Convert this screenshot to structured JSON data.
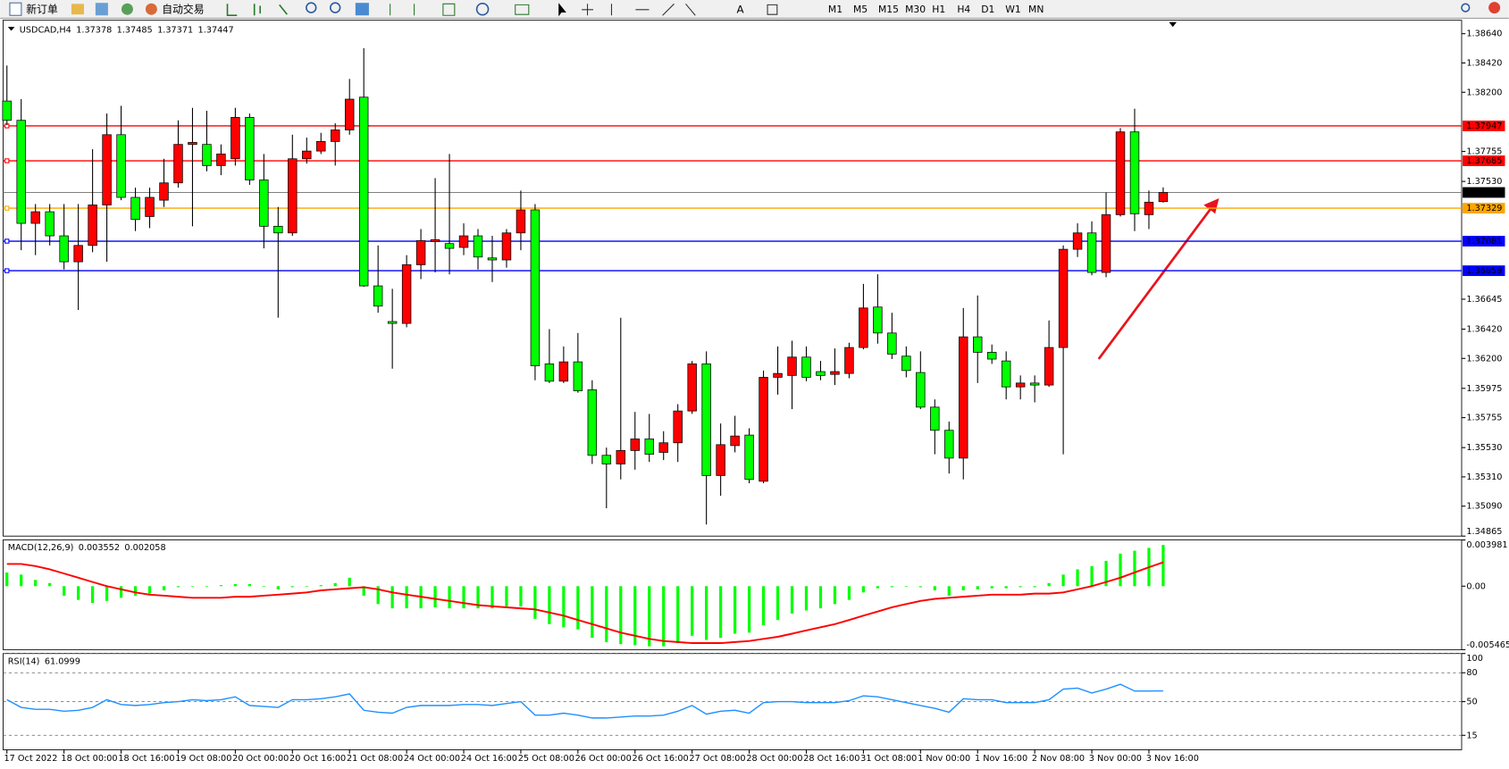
{
  "toolbar": {
    "new_order": "新订单",
    "auto_trading": "自动交易",
    "timeframes": [
      "M1",
      "M5",
      "M15",
      "M30",
      "H1",
      "H4",
      "D1",
      "W1",
      "MN"
    ]
  },
  "chart_data": [
    {
      "type": "candlestick",
      "title": "USDCAD,H4",
      "up_color": "#ff0000",
      "down_color": "#00ff00",
      "last_color": "#808080",
      "categories": [
        "17 Oct 2022",
        null,
        null,
        null,
        "18 Oct 00:00",
        null,
        null,
        null,
        "18 Oct 16:00",
        null,
        null,
        null,
        "19 Oct 08:00",
        null,
        null,
        null,
        "20 Oct 00:00",
        null,
        null,
        null,
        "20 Oct 16:00",
        null,
        null,
        null,
        "21 Oct 08:00",
        null,
        null,
        null,
        "24 Oct 00:00",
        null,
        null,
        null,
        "24 Oct 16:00",
        null,
        null,
        null,
        "25 Oct 08:00",
        null,
        null,
        null,
        "26 Oct 00:00",
        null,
        null,
        null,
        "26 Oct 16:00",
        null,
        null,
        null,
        "27 Oct 08:00",
        null,
        null,
        null,
        "28 Oct 00:00",
        null,
        null,
        null,
        "28 Oct 16:00",
        null,
        null,
        null,
        "31 Oct 08:00",
        null,
        null,
        null,
        "1 Nov 00:00",
        null,
        null,
        null,
        "1 Nov 16:00",
        null,
        null,
        null,
        "2 Nov 08:00",
        null,
        null,
        null,
        "3 Nov 00:00",
        null,
        null,
        null,
        "3 Nov 16:00",
        null
      ],
      "open": [
        1.38134,
        1.37989,
        1.37215,
        1.37302,
        1.37121,
        1.36926,
        1.37049,
        1.37353,
        1.37881,
        1.3741,
        1.37266,
        1.37389,
        1.37519,
        1.37808,
        1.37808,
        1.37649,
        1.377,
        1.38011,
        1.37541,
        1.37193,
        1.37143,
        1.377,
        1.37758,
        1.3783,
        1.37917,
        1.38163,
        1.36745,
        1.36477,
        1.36463,
        1.36904,
        1.37078,
        1.37063,
        1.37034,
        1.37121,
        1.36955,
        1.3694,
        1.37143,
        1.37316,
        1.36159,
        1.36029,
        1.36174,
        1.35964,
        1.35472,
        1.35407,
        1.35508,
        1.35595,
        1.35494,
        1.35566,
        1.35805,
        1.36159,
        1.3532,
        1.35545,
        1.35624,
        1.35277,
        1.36058,
        1.36072,
        1.3621,
        1.36101,
        1.3608,
        1.36087,
        1.36282,
        1.36586,
        1.36391,
        1.36217,
        1.36094,
        1.35834,
        1.3566,
        1.35451,
        1.36362,
        1.36246,
        1.36181,
        1.35986,
        1.36015,
        1.36,
        1.36282,
        1.3702,
        1.37143,
        1.36846,
        1.3728,
        1.37902,
        1.3728,
        1.37378
      ],
      "high": [
        1.38401,
        1.38148,
        1.3736,
        1.3736,
        1.3736,
        1.3736,
        1.37772,
        1.3804,
        1.38098,
        1.37483,
        1.37483,
        1.377,
        1.37989,
        1.38083,
        1.38061,
        1.37808,
        1.38083,
        1.3804,
        1.37736,
        1.37338,
        1.37881,
        1.37859,
        1.37895,
        1.37967,
        1.383,
        1.38531,
        1.37049,
        1.36723,
        1.36976,
        1.37172,
        1.37555,
        1.37736,
        1.37215,
        1.37172,
        1.37121,
        1.37172,
        1.37461,
        1.3736,
        1.3642,
        1.3629,
        1.36391,
        1.36036,
        1.3553,
        1.36506,
        1.35798,
        1.35783,
        1.35653,
        1.35856,
        1.36181,
        1.36253,
        1.35711,
        1.35769,
        1.35675,
        1.36109,
        1.3629,
        1.36333,
        1.3629,
        1.36181,
        1.36275,
        1.36318,
        1.3676,
        1.36832,
        1.36543,
        1.3629,
        1.36253,
        1.35892,
        1.35725,
        1.36579,
        1.36673,
        1.36304,
        1.36253,
        1.36072,
        1.36072,
        1.36485,
        1.37049,
        1.37215,
        1.3723,
        1.37447,
        1.37931,
        1.38076,
        1.37461,
        1.37485
      ],
      "low": [
        1.37953,
        1.37013,
        1.36976,
        1.37049,
        1.36868,
        1.36564,
        1.36998,
        1.36926,
        1.37389,
        1.37157,
        1.37179,
        1.37338,
        1.37483,
        1.37193,
        1.37606,
        1.37577,
        1.37649,
        1.37504,
        1.37027,
        1.36506,
        1.37121,
        1.37664,
        1.37736,
        1.37649,
        1.37881,
        1.36738,
        1.36543,
        1.36123,
        1.36434,
        1.36796,
        1.36846,
        1.36832,
        1.36976,
        1.36868,
        1.36774,
        1.36882,
        1.37013,
        1.36036,
        1.36015,
        1.36015,
        1.35942,
        1.35407,
        1.35074,
        1.35291,
        1.35364,
        1.35422,
        1.35436,
        1.35422,
        1.35783,
        1.34952,
        1.35168,
        1.35494,
        1.35262,
        1.35262,
        1.35928,
        1.35819,
        1.36029,
        1.36036,
        1.36,
        1.36051,
        1.36268,
        1.36311,
        1.36195,
        1.36058,
        1.35819,
        1.3548,
        1.35335,
        1.35291,
        1.36015,
        1.36159,
        1.35892,
        1.35892,
        1.3587,
        1.35986,
        1.3548,
        1.36962,
        1.36825,
        1.3681,
        1.37266,
        1.37157,
        1.37172,
        1.37371
      ],
      "close": [
        1.37989,
        1.37215,
        1.37302,
        1.37121,
        1.36926,
        1.37049,
        1.37353,
        1.37881,
        1.3741,
        1.37244,
        1.3741,
        1.37519,
        1.37808,
        1.37823,
        1.37649,
        1.37736,
        1.38011,
        1.37541,
        1.37193,
        1.37143,
        1.377,
        1.37758,
        1.3783,
        1.37917,
        1.38148,
        1.36745,
        1.36593,
        1.36463,
        1.36904,
        1.37085,
        1.37092,
        1.37027,
        1.37121,
        1.36962,
        1.3694,
        1.37143,
        1.37316,
        1.36145,
        1.36029,
        1.36174,
        1.35957,
        1.35472,
        1.35407,
        1.35508,
        1.35595,
        1.3548,
        1.35566,
        1.35805,
        1.36159,
        1.3532,
        1.35552,
        1.35617,
        1.35291,
        1.36058,
        1.36087,
        1.3621,
        1.36058,
        1.36072,
        1.36101,
        1.36282,
        1.36579,
        1.36391,
        1.36232,
        1.36109,
        1.35834,
        1.3566,
        1.35451,
        1.36362,
        1.36246,
        1.36195,
        1.35986,
        1.36015,
        1.36,
        1.36282,
        1.3702,
        1.37143,
        1.36846,
        1.3728,
        1.37902,
        1.37287,
        1.37374,
        1.37447
      ],
      "levels": [
        {
          "value": 1.37947,
          "color": "#ff0000"
        },
        {
          "value": 1.37685,
          "color": "#ff0000"
        },
        {
          "value": 1.37329,
          "color": "#ffa500"
        },
        {
          "value": 1.37081,
          "color": "#0000ff"
        },
        {
          "value": 1.36859,
          "color": "#0000ff"
        }
      ],
      "ylim": [
        1.34865,
        1.38734
      ],
      "yticks": [
        {
          "value": 1.3864,
          "label": "1.38640"
        },
        {
          "value": 1.3842,
          "label": "1.38420"
        },
        {
          "value": 1.382,
          "label": "1.38200"
        },
        1.37755,
        {
          "value": 1.3753,
          "label": "1.37530"
        },
        1.36645,
        {
          "value": 1.3642,
          "label": "1.36420"
        },
        {
          "value": 1.362,
          "label": "1.36200"
        },
        1.35975,
        1.35755,
        {
          "value": 1.3553,
          "label": "1.35530"
        },
        {
          "value": 1.3531,
          "label": "1.35310"
        },
        {
          "value": 1.3509,
          "label": "1.35090"
        },
        1.34865
      ]
    },
    {
      "type": "bar",
      "title": "MACD(12,26,9)",
      "color": "#00ff00",
      "signal_color": "#ff0000",
      "values": [
        0.00118,
        0.001,
        0.00054,
        0.00027,
        -0.00082,
        -0.00118,
        -0.00145,
        -0.00127,
        -0.001,
        -0.00082,
        -0.00064,
        -0.00036,
        -9e-05,
        -5e-05,
        -5e-05,
        9e-05,
        0.00018,
        0.00018,
        -5e-05,
        -0.00027,
        -9e-05,
        -5e-05,
        9e-05,
        0.00027,
        0.00073,
        -0.00082,
        -0.00154,
        -0.00191,
        -0.00191,
        -0.00191,
        -0.00182,
        -0.00191,
        -0.00191,
        -0.00191,
        -0.00191,
        -0.00173,
        -0.00173,
        -0.00281,
        -0.00327,
        -0.00354,
        -0.00372,
        -0.00445,
        -0.00481,
        -0.00499,
        -0.00508,
        -0.00518,
        -0.00518,
        -0.0049,
        -0.00427,
        -0.00463,
        -0.00445,
        -0.00409,
        -0.004,
        -0.00336,
        -0.00291,
        -0.00236,
        -0.00209,
        -0.00191,
        -0.00154,
        -0.00118,
        -0.00054,
        -0.00018,
        -9e-05,
        -5e-05,
        -9e-05,
        -0.00036,
        -0.00082,
        -0.00036,
        -0.00027,
        -0.00018,
        -0.00018,
        -9e-05,
        -9e-05,
        0.00027,
        0.001,
        0.00145,
        0.00173,
        0.00218,
        0.0028,
        0.00305,
        0.0033,
        0.003552
      ],
      "signal": [
        0.00191,
        0.00191,
        0.00173,
        0.00145,
        0.00109,
        0.00073,
        0.00036,
        0,
        -0.00027,
        -0.00054,
        -0.00073,
        -0.00082,
        -0.00091,
        -0.001,
        -0.001,
        -0.001,
        -0.00091,
        -0.00091,
        -0.00082,
        -0.00073,
        -0.00064,
        -0.00054,
        -0.00036,
        -0.00027,
        -0.00018,
        -9e-05,
        -0.00027,
        -0.00054,
        -0.00073,
        -0.00091,
        -0.00109,
        -0.00127,
        -0.00145,
        -0.00163,
        -0.00173,
        -0.00182,
        -0.00191,
        -0.002,
        -0.00227,
        -0.00254,
        -0.00291,
        -0.00327,
        -0.00363,
        -0.004,
        -0.00427,
        -0.00454,
        -0.00472,
        -0.00481,
        -0.0049,
        -0.0049,
        -0.0049,
        -0.00481,
        -0.00472,
        -0.00454,
        -0.00436,
        -0.00409,
        -0.00381,
        -0.00354,
        -0.00327,
        -0.00291,
        -0.00254,
        -0.00218,
        -0.00182,
        -0.00154,
        -0.00127,
        -0.00109,
        -0.001,
        -0.00091,
        -0.00082,
        -0.00073,
        -0.00073,
        -0.00073,
        -0.00064,
        -0.00064,
        -0.00054,
        -0.00027,
        0,
        0.00036,
        0.00073,
        0.00118,
        0.00163,
        0.002058
      ],
      "ylim": [
        -0.005465,
        0.003981
      ],
      "yticks": [
        0.003981,
        {
          "value": 0,
          "label": "0.00"
        },
        -0.005465
      ]
    },
    {
      "type": "line",
      "title": "RSI(14)",
      "color": "#1e90ff",
      "values": [
        52,
        44,
        42,
        42,
        40,
        41,
        44,
        52,
        47,
        46,
        47,
        49,
        50,
        52,
        51,
        52,
        55,
        46,
        45,
        44,
        52,
        52,
        53,
        55,
        58,
        41,
        39,
        38,
        44,
        46,
        46,
        46,
        47,
        47,
        46,
        48,
        50,
        36,
        36,
        38,
        36,
        33,
        33,
        34,
        35,
        35,
        36,
        40,
        46,
        37,
        40,
        41,
        38,
        49,
        50,
        50,
        49,
        49,
        49,
        51,
        56,
        55,
        52,
        49,
        46,
        43,
        39,
        53,
        52,
        52,
        49,
        49,
        49,
        52,
        63,
        64,
        59,
        63,
        68,
        61,
        61,
        61.0999
      ],
      "ylim": [
        0,
        100
      ],
      "yticks": [
        100,
        80,
        50,
        15
      ]
    }
  ]
}
